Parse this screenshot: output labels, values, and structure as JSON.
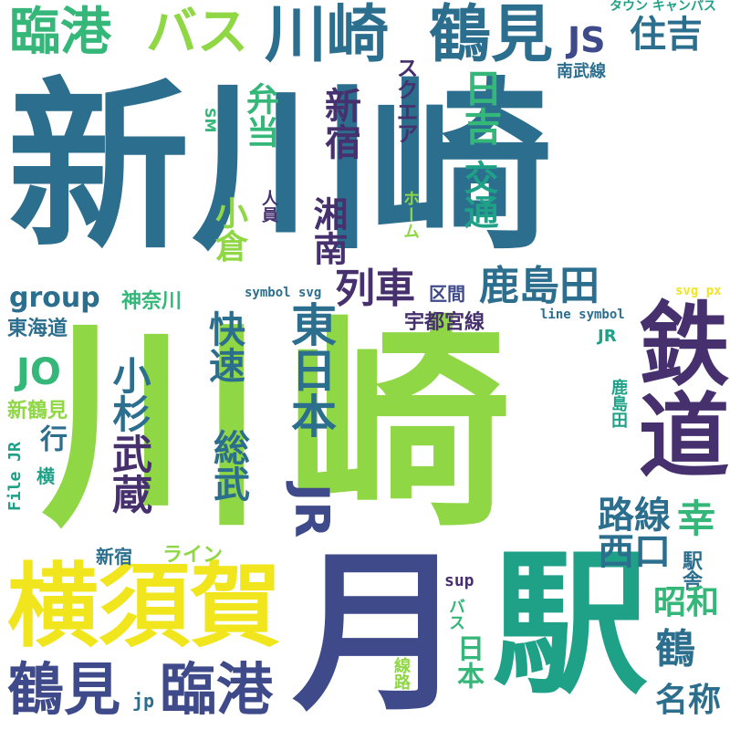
{
  "colors": {
    "teal": "#2c6e8e",
    "dark_purple": "#46306e",
    "indigo": "#3e4a89",
    "green": "#35b779",
    "light_green": "#8fd744",
    "yellow": "#f1e51d",
    "sea_green": "#1fa187"
  },
  "words": [
    {
      "id": "shin",
      "text": "新"
    },
    {
      "id": "kawa_top",
      "text": "川"
    },
    {
      "id": "saki_top",
      "text": "崎"
    },
    {
      "id": "kawa_big",
      "text": "川"
    },
    {
      "id": "saki_big",
      "text": "崎"
    },
    {
      "id": "tsuki",
      "text": "月"
    },
    {
      "id": "eki",
      "text": "駅"
    },
    {
      "id": "yokosuka",
      "text": "横須賀"
    },
    {
      "id": "tetsudo",
      "text": "鉄道"
    },
    {
      "id": "rinko_top",
      "text": "臨港"
    },
    {
      "id": "basu_top",
      "text": "バス"
    },
    {
      "id": "kawasaki_top",
      "text": "川崎"
    },
    {
      "id": "tsurumi_top",
      "text": "鶴見"
    },
    {
      "id": "js",
      "text": "JS"
    },
    {
      "id": "sumiyoshi",
      "text": "住吉"
    },
    {
      "id": "tsurumi_bottom",
      "text": "鶴見"
    },
    {
      "id": "rinko_bottom",
      "text": "臨港"
    },
    {
      "id": "kashimada",
      "text": "鹿島田"
    },
    {
      "id": "ressha",
      "text": "列車"
    },
    {
      "id": "higashi_nihon",
      "text": "東日本"
    },
    {
      "id": "jr_big",
      "text": "JR"
    },
    {
      "id": "bento",
      "text": "弁当"
    },
    {
      "id": "kogura",
      "text": "小倉"
    },
    {
      "id": "shonan",
      "text": "湘南"
    },
    {
      "id": "shinjuku_v",
      "text": "新宿"
    },
    {
      "id": "hiyoshi",
      "text": "日吉"
    },
    {
      "id": "kotsu",
      "text": "交通"
    },
    {
      "id": "sukuea",
      "text": "スクエア"
    },
    {
      "id": "homu",
      "text": "ホーム"
    },
    {
      "id": "town_campus",
      "text": "タウン キャンパス"
    },
    {
      "id": "nambusen",
      "text": "南武線"
    },
    {
      "id": "sm",
      "text": "SM"
    },
    {
      "id": "jinin",
      "text": "人員"
    },
    {
      "id": "group",
      "text": "group"
    },
    {
      "id": "kanagawa",
      "text": "神奈川"
    },
    {
      "id": "symbol_svg",
      "text": "symbol svg"
    },
    {
      "id": "kukan",
      "text": "区間"
    },
    {
      "id": "utsunomiya",
      "text": "宇都宮線"
    },
    {
      "id": "line_symbol",
      "text": "line symbol"
    },
    {
      "id": "svg_px",
      "text": "svg px"
    },
    {
      "id": "tokaido",
      "text": "東海道"
    },
    {
      "id": "jo",
      "text": "JO"
    },
    {
      "id": "musashi",
      "text": "武蔵"
    },
    {
      "id": "kosugi",
      "text": "小杉"
    },
    {
      "id": "kaisoku",
      "text": "快速"
    },
    {
      "id": "sobu",
      "text": "総武"
    },
    {
      "id": "jr_small",
      "text": "JR"
    },
    {
      "id": "kashimada_small",
      "text": "鹿島田"
    },
    {
      "id": "shintsurumi",
      "text": "新鶴見"
    },
    {
      "id": "iku",
      "text": "行"
    },
    {
      "id": "yoko",
      "text": "横"
    },
    {
      "id": "file_jr",
      "text": "File JR"
    },
    {
      "id": "rosen",
      "text": "路線"
    },
    {
      "id": "nishiguchi",
      "text": "西口"
    },
    {
      "id": "saiwai",
      "text": "幸"
    },
    {
      "id": "ekisha",
      "text": "駅舎"
    },
    {
      "id": "showa",
      "text": "昭和"
    },
    {
      "id": "tsuru",
      "text": "鶴"
    },
    {
      "id": "meisho",
      "text": "名称"
    },
    {
      "id": "shinjuku_h",
      "text": "新宿"
    },
    {
      "id": "rain",
      "text": "ライン"
    },
    {
      "id": "sup",
      "text": "sup"
    },
    {
      "id": "basu_small",
      "text": "バス"
    },
    {
      "id": "nihon_small",
      "text": "日本"
    },
    {
      "id": "senro",
      "text": "線路"
    },
    {
      "id": "jp",
      "text": "jp"
    }
  ]
}
